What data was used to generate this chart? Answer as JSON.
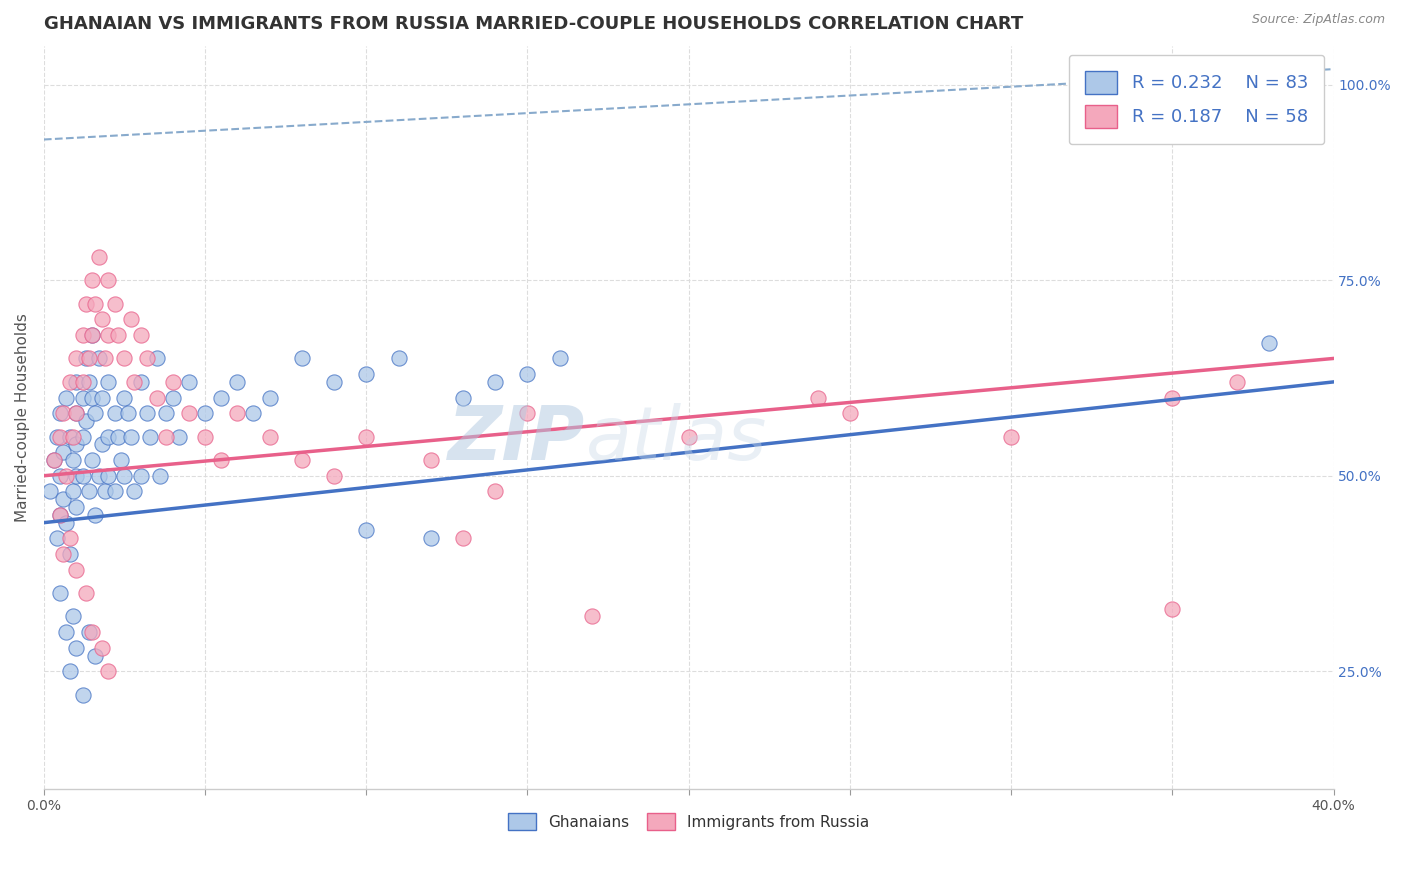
{
  "title": "GHANAIAN VS IMMIGRANTS FROM RUSSIA MARRIED-COUPLE HOUSEHOLDS CORRELATION CHART",
  "source": "Source: ZipAtlas.com",
  "ylabel": "Married-couple Households",
  "xlim": [
    0.0,
    0.4
  ],
  "ylim": [
    0.1,
    1.05
  ],
  "xtick_positions": [
    0.0,
    0.05,
    0.1,
    0.15,
    0.2,
    0.25,
    0.3,
    0.35,
    0.4
  ],
  "yticks_right": [
    0.25,
    0.5,
    0.75,
    1.0
  ],
  "ytick_labels_right": [
    "25.0%",
    "50.0%",
    "75.0%",
    "100.0%"
  ],
  "R_ghanaian": 0.232,
  "N_ghanaian": 83,
  "R_russia": 0.187,
  "N_russia": 58,
  "color_ghanaian": "#adc8e8",
  "color_russia": "#f4a8bc",
  "color_ghanaian_line": "#4472c4",
  "color_russia_line": "#e8608a",
  "color_dashed": "#88aacc",
  "legend_label_ghanaian": "Ghanaians",
  "legend_label_russia": "Immigrants from Russia",
  "watermark_zip": "ZIP",
  "watermark_atlas": "atlas",
  "background_color": "#ffffff",
  "title_fontsize": 13,
  "axis_label_fontsize": 11,
  "tick_fontsize": 10,
  "ghanaian_x": [
    0.002,
    0.003,
    0.004,
    0.004,
    0.005,
    0.005,
    0.005,
    0.006,
    0.006,
    0.007,
    0.007,
    0.008,
    0.008,
    0.009,
    0.009,
    0.01,
    0.01,
    0.01,
    0.01,
    0.01,
    0.012,
    0.012,
    0.012,
    0.013,
    0.013,
    0.014,
    0.014,
    0.015,
    0.015,
    0.015,
    0.016,
    0.016,
    0.017,
    0.017,
    0.018,
    0.018,
    0.019,
    0.02,
    0.02,
    0.02,
    0.022,
    0.022,
    0.023,
    0.024,
    0.025,
    0.025,
    0.026,
    0.027,
    0.028,
    0.03,
    0.03,
    0.032,
    0.033,
    0.035,
    0.036,
    0.038,
    0.04,
    0.042,
    0.045,
    0.05,
    0.055,
    0.06,
    0.065,
    0.07,
    0.08,
    0.09,
    0.1,
    0.11,
    0.13,
    0.14,
    0.15,
    0.16,
    0.1,
    0.12,
    0.005,
    0.007,
    0.008,
    0.009,
    0.01,
    0.012,
    0.014,
    0.016,
    0.38
  ],
  "ghanaian_y": [
    0.48,
    0.52,
    0.55,
    0.42,
    0.58,
    0.45,
    0.5,
    0.53,
    0.47,
    0.6,
    0.44,
    0.55,
    0.4,
    0.52,
    0.48,
    0.62,
    0.58,
    0.54,
    0.5,
    0.46,
    0.6,
    0.55,
    0.5,
    0.65,
    0.57,
    0.62,
    0.48,
    0.68,
    0.6,
    0.52,
    0.58,
    0.45,
    0.65,
    0.5,
    0.6,
    0.54,
    0.48,
    0.62,
    0.55,
    0.5,
    0.58,
    0.48,
    0.55,
    0.52,
    0.6,
    0.5,
    0.58,
    0.55,
    0.48,
    0.62,
    0.5,
    0.58,
    0.55,
    0.65,
    0.5,
    0.58,
    0.6,
    0.55,
    0.62,
    0.58,
    0.6,
    0.62,
    0.58,
    0.6,
    0.65,
    0.62,
    0.63,
    0.65,
    0.6,
    0.62,
    0.63,
    0.65,
    0.43,
    0.42,
    0.35,
    0.3,
    0.25,
    0.32,
    0.28,
    0.22,
    0.3,
    0.27,
    0.67
  ],
  "russia_x": [
    0.003,
    0.005,
    0.006,
    0.007,
    0.008,
    0.009,
    0.01,
    0.01,
    0.012,
    0.012,
    0.013,
    0.014,
    0.015,
    0.015,
    0.016,
    0.017,
    0.018,
    0.019,
    0.02,
    0.02,
    0.022,
    0.023,
    0.025,
    0.027,
    0.028,
    0.03,
    0.032,
    0.035,
    0.038,
    0.04,
    0.045,
    0.05,
    0.055,
    0.06,
    0.07,
    0.08,
    0.09,
    0.1,
    0.12,
    0.14,
    0.15,
    0.2,
    0.24,
    0.25,
    0.3,
    0.35,
    0.37,
    0.005,
    0.006,
    0.008,
    0.01,
    0.013,
    0.015,
    0.018,
    0.02,
    0.13,
    0.17,
    0.35
  ],
  "russia_y": [
    0.52,
    0.55,
    0.58,
    0.5,
    0.62,
    0.55,
    0.65,
    0.58,
    0.68,
    0.62,
    0.72,
    0.65,
    0.75,
    0.68,
    0.72,
    0.78,
    0.7,
    0.65,
    0.75,
    0.68,
    0.72,
    0.68,
    0.65,
    0.7,
    0.62,
    0.68,
    0.65,
    0.6,
    0.55,
    0.62,
    0.58,
    0.55,
    0.52,
    0.58,
    0.55,
    0.52,
    0.5,
    0.55,
    0.52,
    0.48,
    0.58,
    0.55,
    0.6,
    0.58,
    0.55,
    0.6,
    0.62,
    0.45,
    0.4,
    0.42,
    0.38,
    0.35,
    0.3,
    0.28,
    0.25,
    0.42,
    0.32,
    0.33
  ],
  "ghanaian_trend": [
    0.44,
    0.62
  ],
  "russia_trend": [
    0.5,
    0.65
  ],
  "dashed_line": [
    [
      0.0,
      0.4
    ],
    [
      0.93,
      1.02
    ]
  ]
}
